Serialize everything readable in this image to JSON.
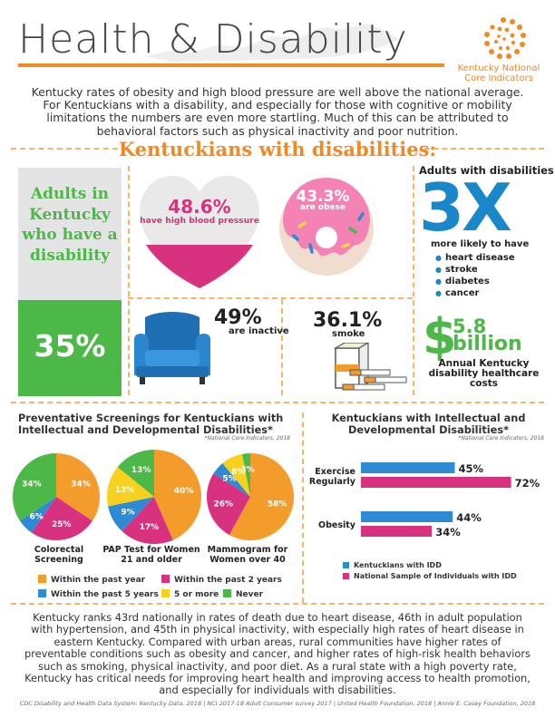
{
  "header": {
    "title": "Health & Disability",
    "logo_text": "Kentucky National Core Indicators",
    "intro": "Kentucky rates of obesity and high blood pressure are well above the national average. For Kentuckians with a disability, and especially for those with cognitive or mobility limitations the numbers are even more startling. Much of this can be attributed to behavioral factors such as physical inactivity and poor nutrition."
  },
  "ky": {
    "heading": "Kentuckians with disabilities:",
    "box_label": "Adults in Kentucky who have a disability",
    "box_pct": "35%",
    "heart_pct": "48.6%",
    "heart_label": "have high blood pressure",
    "donut_pct": "43.3%",
    "donut_label": "are obese",
    "adults_label": "Adults with disabilities",
    "multiplier": "3X",
    "more_likely": "more likely to have",
    "risks": [
      "heart disease",
      "stroke",
      "diabetes",
      "cancer"
    ],
    "inactive_pct": "49%",
    "inactive_label": "are inactive",
    "smoke_pct": "36.1%",
    "smoke_label": "smoke",
    "cost_symbol": "$",
    "cost_value": "5.8",
    "cost_unit": "billion",
    "cost_label": "Annual Kentucky disability healthcare costs"
  },
  "screenings": {
    "title": "Preventative Screenings for Kentuckians with Intellectual and Developmental Disabilities*",
    "source": "*National Core Indicators, 2018",
    "pie_captions": [
      "Colorectal Screening",
      "PAP Test for Women 21 and older",
      "Mammogram for Women over 40"
    ],
    "legend": [
      "Within the past year",
      "Within the past 2 years",
      "Within the past 5 years",
      "5 or more",
      "Never"
    ]
  },
  "idd": {
    "title": "Kentuckians with Intellectual and Developmental Disabilities*",
    "source": "*National Core Indicators, 2018",
    "legend": [
      "Kentuckians with IDD",
      "National Sample of Individuals with IDD"
    ]
  },
  "chart_data": [
    {
      "type": "pie",
      "caption": "Colorectal Screening",
      "slices": [
        {
          "label": "Within the past year",
          "value": 34,
          "color": "#f39c2c"
        },
        {
          "label": "Within the past 2 years",
          "value": 25,
          "color": "#d8317f"
        },
        {
          "label": "Within the past 5 years",
          "value": 6,
          "color": "#2e8bd3"
        },
        {
          "label": "Never",
          "value": 34,
          "color": "#4cb848"
        }
      ]
    },
    {
      "type": "pie",
      "caption": "PAP Test for Women 21 and older",
      "slices": [
        {
          "label": "Within the past year",
          "value": 40,
          "color": "#f39c2c"
        },
        {
          "label": "Within the past 2 years",
          "value": 17,
          "color": "#d8317f"
        },
        {
          "label": "Within the past 5 years",
          "value": 9,
          "color": "#2e8bd3"
        },
        {
          "label": "5 or more",
          "value": 13,
          "color": "#f7d11e"
        },
        {
          "label": "Never",
          "value": 13,
          "color": "#4cb848"
        }
      ]
    },
    {
      "type": "pie",
      "caption": "Mammogram for Women over 40",
      "slices": [
        {
          "label": "Within the past year",
          "value": 58,
          "color": "#f39c2c"
        },
        {
          "label": "Within the past 2 years",
          "value": 26,
          "color": "#d8317f"
        },
        {
          "label": "Within the past 5 years",
          "value": 5,
          "color": "#2e8bd3"
        },
        {
          "label": "5 or more",
          "value": 8,
          "color": "#f7d11e"
        },
        {
          "label": "Never",
          "value": 3,
          "color": "#4cb848"
        }
      ]
    },
    {
      "type": "bar",
      "orientation": "horizontal",
      "categories": [
        "Exercise Regularly",
        "Obesity"
      ],
      "series": [
        {
          "name": "Kentuckians with IDD",
          "values": [
            45,
            44
          ],
          "color": "#2e8bd3"
        },
        {
          "name": "National Sample of Individuals with IDD",
          "values": [
            72,
            34
          ],
          "color": "#d8317f"
        }
      ],
      "value_suffix": "%"
    }
  ],
  "bottom_text": "Kentucky ranks 43rd nationally in rates of death due to heart disease, 46th in adult population with hypertension, and 45th in physical inactivity, with especially high rates of heart disease in eastern Kentucky. Compared with urban areas, rural communities have higher rates of preventable conditions such as obesity and cancer, and higher rates of high-risk health behaviors such as smoking, physical inactivity, and poor diet. As a rural state with a high poverty rate, Kentucky has critical needs for improving heart health and improving access to health promotion, and especially for individuals with disabilities.",
  "footer": "CDC Disability and Health Data System: Kentucky Data, 2018 | NCI 2017-18 Adult Consumer survey 2017 | United Health Foundation, 2018 | Annie E. Casey Foundation, 2018"
}
